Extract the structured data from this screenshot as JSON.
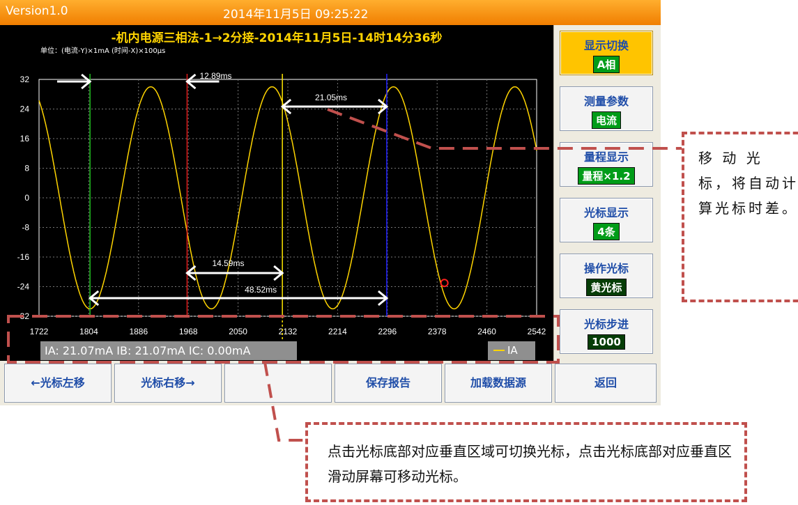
{
  "header": {
    "version": "Version1.0",
    "datetime": "2014年11月5日 09:25:22"
  },
  "plot": {
    "title": "-机内电源三相法-1→2分接-2014年11月5日-14时14分36秒",
    "unit_label": "单位：(电流-Y)×1mA  (时间-X)×100μs",
    "y_ticks": [
      "32",
      "24",
      "16",
      "8",
      "0",
      "-8",
      "-16",
      "-24",
      "-32"
    ],
    "x_ticks": [
      "1722",
      "1804",
      "1886",
      "1968",
      "2050",
      "2132",
      "2214",
      "2296",
      "2378",
      "2460",
      "2542"
    ],
    "measurements": {
      "m1": "12.89ms",
      "m2": "21.05ms",
      "m3": "14.59ms",
      "m4": "48.52ms"
    },
    "colors": {
      "wave": "#ffd400",
      "cursor_green": "#22c022",
      "cursor_red": "#e01a1a",
      "cursor_yellow": "#ffe600",
      "cursor_blue": "#2222ff"
    }
  },
  "chart_data": {
    "type": "line",
    "title": "-机内电源三相法-1→2分接-2014年11月5日-14时14分36秒",
    "xlabel": "时间-X ×100μs",
    "ylabel": "电流-Y ×1mA",
    "xlim": [
      1722,
      2542
    ],
    "ylim": [
      -32,
      32
    ],
    "series": [
      {
        "name": "IA",
        "amplitude": 30,
        "period": 200,
        "x": [
          1722,
          1734,
          1773,
          1806,
          1872,
          1928,
          1966,
          1977,
          2036,
          2066,
          2094,
          2138,
          2195,
          2228,
          2261,
          2325,
          2356,
          2390,
          2430,
          2470,
          2516,
          2542
        ],
        "y": [
          29,
          26,
          0,
          -30,
          28,
          -1,
          -22,
          -30,
          30,
          18,
          0,
          -28,
          0,
          30,
          18,
          -28,
          -30,
          -5,
          22,
          30,
          10,
          0
        ]
      }
    ],
    "cursors": [
      {
        "color": "green",
        "x": 1806
      },
      {
        "color": "red",
        "x": 1966
      },
      {
        "color": "yellow",
        "x": 2123
      },
      {
        "color": "blue",
        "x": 2295
      }
    ]
  },
  "status": {
    "readout": "IA: 21.07mA  IB: 21.07mA  IC: 0.00mA",
    "legend": "IA"
  },
  "right_panel": [
    {
      "label": "显示切换",
      "value": "A相"
    },
    {
      "label": "测量参数",
      "value": "电流"
    },
    {
      "label": "量程显示",
      "value": "量程×1.2"
    },
    {
      "label": "光标显示",
      "value": "4条"
    },
    {
      "label": "操作光标",
      "value": "黄光标"
    },
    {
      "label": "光标步进",
      "value": "1000"
    }
  ],
  "bottom_bar": {
    "left_move": "←光标左移",
    "right_move": "光标右移→",
    "empty": "",
    "save_report": "保存报告",
    "load_source": "加载数据源",
    "back": "返回"
  },
  "annotations": {
    "right": "移 动 光 标，将自动计算光标时差。",
    "bottom": "点击光标底部对应垂直区域可切换光标，点击光标底部对应垂直区滑动屏幕可移动光标。"
  }
}
